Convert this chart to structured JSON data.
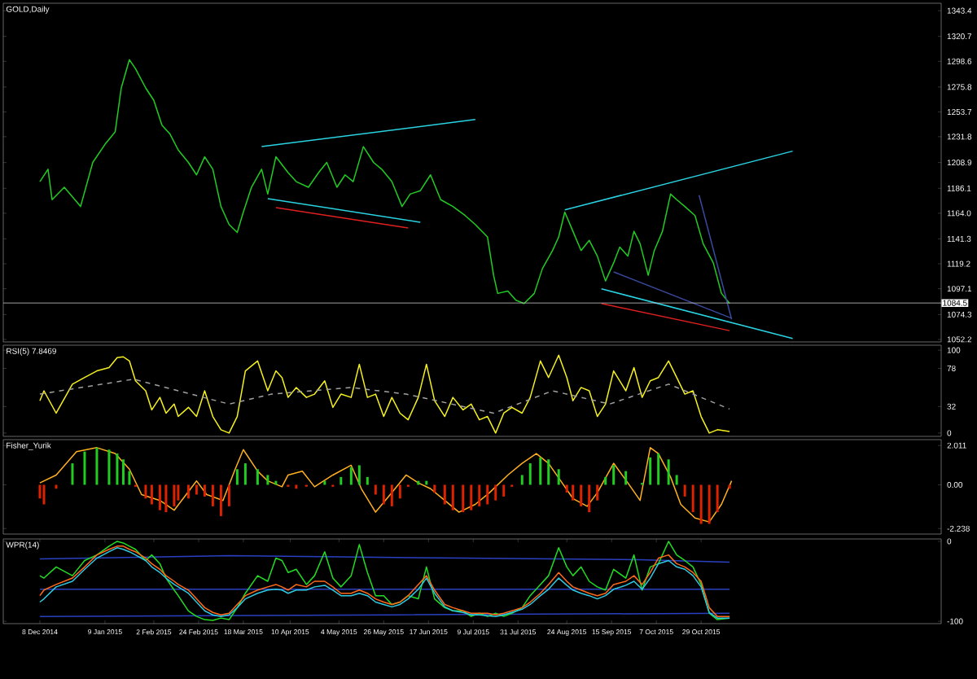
{
  "chart_data": [
    {
      "type": "line",
      "title": "GOLD,Daily",
      "xlim": [
        "2014-11-20",
        "2016-02-24"
      ],
      "ylim": [
        1050,
        1350
      ],
      "tick_labels": "y",
      "yticks": [
        {
          "value": 1343.4,
          "label": "1343.4"
        },
        {
          "value": 1320.7,
          "label": "1320.7"
        },
        {
          "value": 1298.6,
          "label": "1298.6"
        },
        {
          "value": 1275.8,
          "label": "1275.8"
        },
        {
          "value": 1253.7,
          "label": "1253.7"
        },
        {
          "value": 1231.8,
          "label": "1231.8"
        },
        {
          "value": 1208.9,
          "label": "1208.9"
        },
        {
          "value": 1186.1,
          "label": "1186.1"
        },
        {
          "value": 1164,
          "label": "1164.0"
        },
        {
          "value": 1141.3,
          "label": "1141.3"
        },
        {
          "value": 1119.2,
          "label": "1119.2"
        },
        {
          "value": 1097.1,
          "label": "1097.1"
        },
        {
          "value": 1074.3,
          "label": "1074.3"
        },
        {
          "value": 1052.2,
          "label": "1052.2"
        }
      ],
      "ref_lines": [
        {
          "axis": "y",
          "value": 1084.5,
          "label": "1084.5",
          "color": "#c8c8c8"
        }
      ],
      "series": [
        {
          "color": "#22cc22",
          "x": [
            "2014-12-08",
            "2014-12-12",
            "2014-12-14",
            "2014-12-20",
            "2014-12-28",
            "2015-01-03",
            "2015-01-09",
            "2015-01-14",
            "2015-01-17",
            "2015-01-21",
            "2015-01-24",
            "2015-01-29",
            "2015-02-02",
            "2015-02-06",
            "2015-02-10",
            "2015-02-14",
            "2015-02-19",
            "2015-02-23",
            "2015-02-27",
            "2015-03-03",
            "2015-03-07",
            "2015-03-11",
            "2015-03-15",
            "2015-03-18",
            "2015-03-22",
            "2015-03-27",
            "2015-03-30",
            "2015-04-03",
            "2015-04-09",
            "2015-04-13",
            "2015-04-19",
            "2015-04-24",
            "2015-04-28",
            "2015-05-03",
            "2015-05-07",
            "2015-05-11",
            "2015-05-16",
            "2015-05-21",
            "2015-05-25",
            "2015-05-30",
            "2015-06-04",
            "2015-06-08",
            "2015-06-13",
            "2015-06-18",
            "2015-06-23",
            "2015-06-29",
            "2015-07-05",
            "2015-07-10",
            "2015-07-16",
            "2015-07-19",
            "2015-07-21",
            "2015-07-26",
            "2015-07-30",
            "2015-08-03",
            "2015-08-08",
            "2015-08-12",
            "2015-08-17",
            "2015-08-20",
            "2015-08-23",
            "2015-08-27",
            "2015-08-31",
            "2015-09-04",
            "2015-09-08",
            "2015-09-12",
            "2015-09-16",
            "2015-09-19",
            "2015-09-23",
            "2015-09-26",
            "2015-09-29",
            "2015-10-03",
            "2015-10-06",
            "2015-10-10",
            "2015-10-14",
            "2015-10-17",
            "2015-10-21",
            "2015-10-26",
            "2015-10-30",
            "2015-11-04",
            "2015-11-08",
            "2015-11-12"
          ],
          "values": [
            1192,
            1203,
            1176,
            1187,
            1170,
            1209,
            1225,
            1236,
            1275,
            1300,
            1292,
            1275,
            1264,
            1242,
            1234,
            1220,
            1209,
            1198,
            1214,
            1203,
            1170,
            1154,
            1147,
            1165,
            1187,
            1203,
            1181,
            1214,
            1200,
            1192,
            1187,
            1200,
            1209,
            1187,
            1198,
            1192,
            1223,
            1209,
            1203,
            1192,
            1170,
            1181,
            1184,
            1198,
            1176,
            1170,
            1162,
            1154,
            1143,
            1109,
            1093,
            1095,
            1087,
            1084,
            1093,
            1115,
            1131,
            1143,
            1165,
            1148,
            1131,
            1140,
            1126,
            1104,
            1120,
            1134,
            1126,
            1148,
            1137,
            1109,
            1131,
            1148,
            1181,
            1176,
            1170,
            1162,
            1137,
            1120,
            1093,
            1084
          ]
        },
        {
          "type": "line",
          "color": "#29d3e3",
          "x": [
            "2015-03-27",
            "2015-07-10"
          ],
          "values": [
            1223,
            1247
          ]
        },
        {
          "type": "line",
          "color": "#29d3e3",
          "x": [
            "2015-03-30",
            "2015-06-13"
          ],
          "values": [
            1177,
            1156
          ]
        },
        {
          "type": "line",
          "color": "#29d3e3",
          "x": [
            "2015-08-23",
            "2015-12-13"
          ],
          "values": [
            1167,
            1219
          ]
        },
        {
          "type": "line",
          "color": "#29d3e3",
          "x": [
            "2015-09-10",
            "2015-12-13"
          ],
          "values": [
            1097,
            1053
          ]
        },
        {
          "type": "line",
          "color": "#e02020",
          "x": [
            "2015-04-03",
            "2015-06-07"
          ],
          "values": [
            1169,
            1151
          ]
        },
        {
          "type": "line",
          "color": "#e02020",
          "x": [
            "2015-09-10",
            "2015-11-12"
          ],
          "values": [
            1084,
            1060
          ]
        },
        {
          "type": "line",
          "color": "#3a4aa0",
          "x": [
            "2015-10-28",
            "2015-11-13"
          ],
          "values": [
            1180,
            1070
          ]
        },
        {
          "type": "line",
          "color": "#3a4aa0",
          "x": [
            "2015-09-16",
            "2015-11-13"
          ],
          "values": [
            1112,
            1071
          ]
        }
      ]
    },
    {
      "type": "line",
      "title": "RSI(5) 7.8469",
      "xlim": [
        "2014-11-20",
        "2016-02-24"
      ],
      "ylim": [
        -4,
        106
      ],
      "tick_labels": "y",
      "yticks": [
        0,
        32,
        78,
        100
      ],
      "x": [
        "2014-12-08",
        "2014-12-10",
        "2014-12-16",
        "2014-12-24",
        "2014-12-30",
        "2015-01-05",
        "2015-01-11",
        "2015-01-15",
        "2015-01-18",
        "2015-01-21",
        "2015-01-24",
        "2015-01-29",
        "2015-02-01",
        "2015-02-05",
        "2015-02-08",
        "2015-02-12",
        "2015-02-14",
        "2015-02-19",
        "2015-02-23",
        "2015-02-27",
        "2015-03-03",
        "2015-03-07",
        "2015-03-11",
        "2015-03-15",
        "2015-03-19",
        "2015-03-25",
        "2015-03-30",
        "2015-04-03",
        "2015-04-06",
        "2015-04-09",
        "2015-04-13",
        "2015-04-18",
        "2015-04-22",
        "2015-04-27",
        "2015-05-01",
        "2015-05-05",
        "2015-05-10",
        "2015-05-14",
        "2015-05-18",
        "2015-05-22",
        "2015-05-26",
        "2015-05-30",
        "2015-06-03",
        "2015-06-07",
        "2015-06-12",
        "2015-06-16",
        "2015-06-20",
        "2015-06-25",
        "2015-06-29",
        "2015-07-04",
        "2015-07-08",
        "2015-07-12",
        "2015-07-16",
        "2015-07-20",
        "2015-07-24",
        "2015-07-28",
        "2015-08-02",
        "2015-08-06",
        "2015-08-11",
        "2015-08-15",
        "2015-08-20",
        "2015-08-24",
        "2015-08-27",
        "2015-08-31",
        "2015-09-04",
        "2015-09-08",
        "2015-09-12",
        "2015-09-16",
        "2015-09-22",
        "2015-09-26",
        "2015-09-30",
        "2015-10-04",
        "2015-10-08",
        "2015-10-13",
        "2015-10-17",
        "2015-10-21",
        "2015-10-25",
        "2015-10-29",
        "2015-11-02",
        "2015-11-06",
        "2015-11-12"
      ],
      "series": [
        {
          "color": "#f5f020",
          "values": [
            39,
            51,
            24,
            59,
            67,
            75,
            79,
            91,
            92,
            87,
            63,
            51,
            28,
            43,
            24,
            35,
            20,
            31,
            20,
            51,
            20,
            4,
            0,
            20,
            75,
            87,
            51,
            75,
            67,
            43,
            55,
            43,
            47,
            63,
            31,
            47,
            43,
            83,
            43,
            47,
            20,
            43,
            24,
            16,
            43,
            83,
            39,
            20,
            43,
            28,
            35,
            16,
            20,
            0,
            24,
            31,
            24,
            43,
            87,
            67,
            94,
            67,
            39,
            55,
            51,
            20,
            35,
            75,
            51,
            79,
            43,
            63,
            67,
            87,
            67,
            47,
            51,
            20,
            0,
            4,
            2
          ]
        },
        {
          "color": "#a0a0a0",
          "line_style": "dashed",
          "x": [
            "2014-12-08",
            "2015-01-23",
            "2015-03-11",
            "2015-04-01",
            "2015-05-10",
            "2015-06-06",
            "2015-07-19",
            "2015-08-17",
            "2015-09-14",
            "2015-10-13",
            "2015-11-12"
          ],
          "values": [
            47,
            65,
            35,
            47,
            55,
            47,
            24,
            51,
            35,
            59,
            29
          ]
        }
      ]
    },
    {
      "type": "bar",
      "title": "Fisher_Yurik",
      "xlim": [
        "2014-11-20",
        "2016-02-24"
      ],
      "ylim": [
        -2.52,
        2.31
      ],
      "tick_labels": "y",
      "yticks": [
        {
          "value": 2.011,
          "label": "2.011"
        },
        {
          "value": 0,
          "label": "0.00"
        },
        {
          "value": -2.238,
          "label": "-2.238"
        }
      ],
      "x": [
        "2014-12-08",
        "2014-12-10",
        "2014-12-16",
        "2014-12-24",
        "2014-12-30",
        "2015-01-05",
        "2015-01-11",
        "2015-01-15",
        "2015-01-18",
        "2015-01-21",
        "2015-01-24",
        "2015-01-29",
        "2015-02-01",
        "2015-02-05",
        "2015-02-08",
        "2015-02-12",
        "2015-02-14",
        "2015-02-19",
        "2015-02-23",
        "2015-02-27",
        "2015-03-03",
        "2015-03-07",
        "2015-03-11",
        "2015-03-15",
        "2015-03-19",
        "2015-03-25",
        "2015-03-30",
        "2015-04-03",
        "2015-04-06",
        "2015-04-09",
        "2015-04-13",
        "2015-04-18",
        "2015-04-22",
        "2015-04-27",
        "2015-05-01",
        "2015-05-05",
        "2015-05-10",
        "2015-05-14",
        "2015-05-18",
        "2015-05-22",
        "2015-05-26",
        "2015-05-30",
        "2015-06-03",
        "2015-06-07",
        "2015-06-12",
        "2015-06-16",
        "2015-06-20",
        "2015-06-25",
        "2015-06-29",
        "2015-07-04",
        "2015-07-08",
        "2015-07-12",
        "2015-07-16",
        "2015-07-20",
        "2015-07-24",
        "2015-07-28",
        "2015-08-02",
        "2015-08-06",
        "2015-08-11",
        "2015-08-15",
        "2015-08-20",
        "2015-08-24",
        "2015-08-27",
        "2015-08-31",
        "2015-09-04",
        "2015-09-08",
        "2015-09-12",
        "2015-09-16",
        "2015-09-22",
        "2015-09-26",
        "2015-09-30",
        "2015-10-04",
        "2015-10-08",
        "2015-10-13",
        "2015-10-17",
        "2015-10-21",
        "2015-10-25",
        "2015-10-29",
        "2015-11-02",
        "2015-11-06",
        "2015-11-12"
      ],
      "series": [
        {
          "values": [
            -0.7,
            -1.0,
            -0.2,
            1.1,
            1.7,
            1.9,
            1.8,
            1.6,
            1.3,
            0.7,
            -0.1,
            -0.7,
            -1.0,
            -1.3,
            -1.4,
            -1.1,
            -0.8,
            -0.7,
            -0.5,
            -0.6,
            -1.1,
            -1.6,
            -1.1,
            0.8,
            1.1,
            0.8,
            0.5,
            0.2,
            0.0,
            -0.1,
            -0.2,
            -0.1,
            0.0,
            0.2,
            -0.1,
            0.4,
            0.9,
            1.0,
            0.4,
            -0.5,
            -1.0,
            -1.1,
            -0.7,
            -0.1,
            0.2,
            0.2,
            -0.4,
            -1.0,
            -1.3,
            -1.4,
            -1.3,
            -1.1,
            -1.0,
            -0.8,
            -0.6,
            -0.1,
            0.5,
            1.1,
            1.4,
            1.3,
            0.8,
            -0.4,
            -0.8,
            -1.1,
            -1.4,
            -0.8,
            0.4,
            1.0,
            0.7,
            0.0,
            0.1,
            1.4,
            1.6,
            1.3,
            0.5,
            -0.6,
            -1.4,
            -2.0,
            -2.0,
            -1.4,
            -0.2
          ],
          "colors": [
            "#dd2200",
            "#dd2200",
            "#dd2200",
            "#22cc22",
            "#22cc22",
            "#22cc22",
            "#22cc22",
            "#22cc22",
            "#22cc22",
            "#22cc22",
            "#dd2200",
            "#dd2200",
            "#dd2200",
            "#dd2200",
            "#dd2200",
            "#dd2200",
            "#dd2200",
            "#dd2200",
            "#dd2200",
            "#dd2200",
            "#dd2200",
            "#dd2200",
            "#dd2200",
            "#22cc22",
            "#22cc22",
            "#22cc22",
            "#22cc22",
            "#22cc22",
            "#dd2200",
            "#dd2200",
            "#dd2200",
            "#dd2200",
            "#dd2200",
            "#22cc22",
            "#dd2200",
            "#22cc22",
            "#22cc22",
            "#22cc22",
            "#22cc22",
            "#dd2200",
            "#dd2200",
            "#dd2200",
            "#dd2200",
            "#dd2200",
            "#22cc22",
            "#22cc22",
            "#dd2200",
            "#dd2200",
            "#dd2200",
            "#dd2200",
            "#dd2200",
            "#dd2200",
            "#dd2200",
            "#dd2200",
            "#dd2200",
            "#dd2200",
            "#22cc22",
            "#22cc22",
            "#22cc22",
            "#22cc22",
            "#22cc22",
            "#dd2200",
            "#dd2200",
            "#dd2200",
            "#dd2200",
            "#dd2200",
            "#22cc22",
            "#22cc22",
            "#22cc22",
            "#dd2200",
            "#22cc22",
            "#22cc22",
            "#22cc22",
            "#22cc22",
            "#22cc22",
            "#dd2200",
            "#dd2200",
            "#dd2200",
            "#dd2200",
            "#dd2200",
            "#dd2200"
          ]
        },
        {
          "type": "line",
          "color": "#ffb020",
          "x": [
            "2014-12-08",
            "2014-12-16",
            "2014-12-26",
            "2015-01-05",
            "2015-01-14",
            "2015-01-21",
            "2015-01-27",
            "2015-02-05",
            "2015-02-12",
            "2015-02-23",
            "2015-02-28",
            "2015-03-08",
            "2015-03-14",
            "2015-03-18",
            "2015-03-25",
            "2015-03-30",
            "2015-04-06",
            "2015-04-09",
            "2015-04-16",
            "2015-04-22",
            "2015-05-01",
            "2015-05-10",
            "2015-05-15",
            "2015-05-22",
            "2015-05-30",
            "2015-06-06",
            "2015-06-12",
            "2015-06-18",
            "2015-06-25",
            "2015-07-02",
            "2015-07-10",
            "2015-07-17",
            "2015-07-26",
            "2015-08-02",
            "2015-08-09",
            "2015-08-15",
            "2015-08-21",
            "2015-08-27",
            "2015-09-03",
            "2015-09-08",
            "2015-09-16",
            "2015-09-23",
            "2015-09-29",
            "2015-10-04",
            "2015-10-08",
            "2015-10-14",
            "2015-10-19",
            "2015-10-26",
            "2015-11-02",
            "2015-11-08",
            "2015-11-13"
          ],
          "values": [
            0.1,
            0.5,
            1.7,
            1.9,
            1.6,
            0.8,
            -0.5,
            -0.8,
            -1.3,
            0.2,
            -0.5,
            -0.8,
            0.8,
            1.8,
            0.7,
            0.2,
            -0.1,
            0.5,
            0.7,
            -0.1,
            0.5,
            1.0,
            -0.2,
            -1.4,
            -0.4,
            0.5,
            0.1,
            -0.2,
            -0.8,
            -1.4,
            -1.0,
            -0.4,
            0.5,
            1.1,
            1.6,
            1.1,
            0.2,
            -0.7,
            -1.1,
            -0.4,
            1.1,
            0.1,
            -0.8,
            1.9,
            1.6,
            0.4,
            -1.0,
            -1.7,
            -1.9,
            -1.0,
            0.2
          ]
        }
      ]
    },
    {
      "type": "line",
      "title": "WPR(14)",
      "xlim": [
        "2014-11-20",
        "2016-02-24"
      ],
      "ylim": [
        -103,
        3
      ],
      "yticks": [
        -100,
        0
      ],
      "xticks": [
        {
          "value": "2014-12-08",
          "label": "8 Dec 2014"
        },
        {
          "value": "2015-01-09",
          "label": "9 Jan 2015"
        },
        {
          "value": "2015-02-02",
          "label": "2 Feb 2015"
        },
        {
          "value": "2015-02-24",
          "label": "24 Feb 2015"
        },
        {
          "value": "2015-03-18",
          "label": "18 Mar 2015"
        },
        {
          "value": "2015-04-10",
          "label": "10 Apr 2015"
        },
        {
          "value": "2015-05-04",
          "label": "4 May 2015"
        },
        {
          "value": "2015-05-26",
          "label": "26 May 2015"
        },
        {
          "value": "2015-06-17",
          "label": "17 Jun 2015"
        },
        {
          "value": "2015-07-09",
          "label": "9 Jul 2015"
        },
        {
          "value": "2015-07-31",
          "label": "31 Jul 2015"
        },
        {
          "value": "2015-08-24",
          "label": "24 Aug 2015"
        },
        {
          "value": "2015-09-15",
          "label": "15 Sep 2015"
        },
        {
          "value": "2015-10-07",
          "label": "7 Oct 2015"
        },
        {
          "value": "2015-10-29",
          "label": "29 Oct 2015"
        }
      ],
      "x": [
        "2014-12-08",
        "2014-12-10",
        "2014-12-16",
        "2014-12-24",
        "2014-12-30",
        "2015-01-05",
        "2015-01-11",
        "2015-01-15",
        "2015-01-18",
        "2015-01-21",
        "2015-01-24",
        "2015-01-29",
        "2015-02-01",
        "2015-02-05",
        "2015-02-08",
        "2015-02-12",
        "2015-02-14",
        "2015-02-19",
        "2015-02-23",
        "2015-02-27",
        "2015-03-03",
        "2015-03-07",
        "2015-03-11",
        "2015-03-15",
        "2015-03-19",
        "2015-03-25",
        "2015-03-30",
        "2015-04-03",
        "2015-04-06",
        "2015-04-09",
        "2015-04-13",
        "2015-04-18",
        "2015-04-22",
        "2015-04-27",
        "2015-05-01",
        "2015-05-05",
        "2015-05-10",
        "2015-05-14",
        "2015-05-18",
        "2015-05-22",
        "2015-05-26",
        "2015-05-30",
        "2015-06-03",
        "2015-06-07",
        "2015-06-12",
        "2015-06-16",
        "2015-06-20",
        "2015-06-25",
        "2015-06-29",
        "2015-07-04",
        "2015-07-08",
        "2015-07-12",
        "2015-07-16",
        "2015-07-20",
        "2015-07-24",
        "2015-07-28",
        "2015-08-02",
        "2015-08-06",
        "2015-08-11",
        "2015-08-15",
        "2015-08-20",
        "2015-08-24",
        "2015-08-27",
        "2015-08-31",
        "2015-09-04",
        "2015-09-08",
        "2015-09-12",
        "2015-09-16",
        "2015-09-22",
        "2015-09-26",
        "2015-09-30",
        "2015-10-04",
        "2015-10-08",
        "2015-10-13",
        "2015-10-17",
        "2015-10-21",
        "2015-10-25",
        "2015-10-29",
        "2015-11-02",
        "2015-11-06",
        "2015-11-12"
      ],
      "series": [
        {
          "color": "#2a40c0",
          "x": [
            "2014-12-08",
            "2015-03-11",
            "2015-07-05",
            "2015-09-29",
            "2015-11-12"
          ],
          "values": [
            -22,
            -18,
            -21,
            -23,
            -26
          ]
        },
        {
          "color": "#2a40c0",
          "x": [
            "2014-12-08",
            "2015-06-01",
            "2015-11-12"
          ],
          "values": [
            -60,
            -60,
            -60
          ]
        },
        {
          "color": "#2a40c0",
          "x": [
            "2014-12-08",
            "2015-06-01",
            "2015-11-12"
          ],
          "values": [
            -94,
            -92,
            -90
          ]
        },
        {
          "color": "#22dd22",
          "values": [
            -43,
            -46,
            -32,
            -43,
            -24,
            -17,
            -6,
            0,
            -2,
            -6,
            -10,
            -24,
            -17,
            -28,
            -46,
            -61,
            -68,
            -87,
            -94,
            -98,
            -99,
            -96,
            -98,
            -83,
            -65,
            -43,
            -50,
            -21,
            -24,
            -39,
            -35,
            -54,
            -43,
            -13,
            -46,
            -57,
            -43,
            -4,
            -39,
            -68,
            -68,
            -79,
            -76,
            -68,
            -72,
            -32,
            -72,
            -83,
            -87,
            -87,
            -94,
            -90,
            -94,
            -90,
            -94,
            -90,
            -83,
            -68,
            -54,
            -43,
            -8,
            -32,
            -43,
            -32,
            -50,
            -57,
            -61,
            -35,
            -46,
            -17,
            -61,
            -32,
            -28,
            0,
            -17,
            -24,
            -32,
            -54,
            -90,
            -98,
            -96
          ]
        },
        {
          "color": "#ff6a1a",
          "values": [
            -68,
            -61,
            -54,
            -46,
            -32,
            -17,
            -10,
            -6,
            -6,
            -10,
            -13,
            -21,
            -28,
            -35,
            -43,
            -50,
            -54,
            -61,
            -72,
            -83,
            -89,
            -92,
            -90,
            -79,
            -68,
            -61,
            -57,
            -54,
            -57,
            -61,
            -54,
            -57,
            -50,
            -50,
            -57,
            -65,
            -65,
            -61,
            -65,
            -72,
            -76,
            -79,
            -76,
            -68,
            -54,
            -43,
            -61,
            -79,
            -83,
            -87,
            -90,
            -90,
            -90,
            -92,
            -90,
            -87,
            -83,
            -76,
            -65,
            -54,
            -39,
            -50,
            -57,
            -61,
            -65,
            -68,
            -65,
            -54,
            -50,
            -43,
            -54,
            -39,
            -21,
            -17,
            -28,
            -32,
            -39,
            -50,
            -83,
            -94,
            -94
          ]
        },
        {
          "color": "#30c8e0",
          "values": [
            -76,
            -72,
            -57,
            -50,
            -35,
            -21,
            -13,
            -8,
            -10,
            -13,
            -17,
            -24,
            -32,
            -39,
            -46,
            -54,
            -57,
            -65,
            -76,
            -87,
            -92,
            -94,
            -92,
            -83,
            -72,
            -65,
            -61,
            -60,
            -61,
            -65,
            -61,
            -61,
            -57,
            -55,
            -61,
            -68,
            -68,
            -65,
            -68,
            -76,
            -79,
            -82,
            -79,
            -72,
            -60,
            -46,
            -65,
            -82,
            -87,
            -89,
            -92,
            -92,
            -93,
            -94,
            -92,
            -89,
            -85,
            -79,
            -68,
            -60,
            -46,
            -55,
            -61,
            -65,
            -68,
            -72,
            -68,
            -60,
            -55,
            -50,
            -60,
            -46,
            -28,
            -24,
            -32,
            -35,
            -43,
            -57,
            -89,
            -96,
            -96
          ]
        }
      ]
    }
  ]
}
